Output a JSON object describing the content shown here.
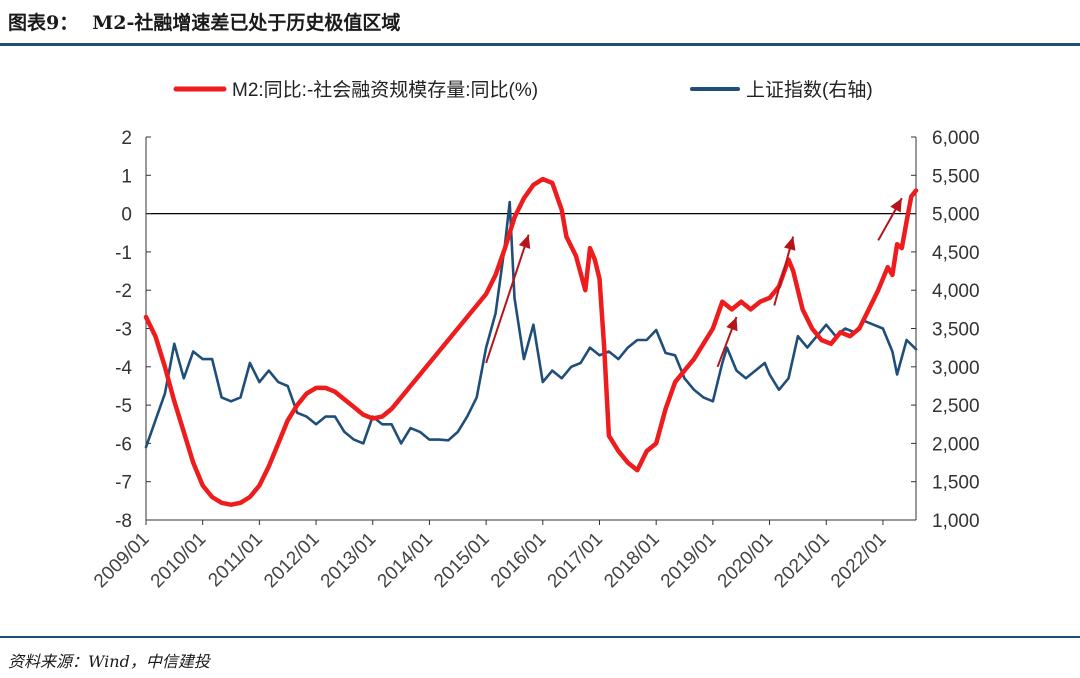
{
  "figure": {
    "label": "图表9：",
    "title": "M2-社融增速差已处于历史极值区域",
    "source": "资料来源：Wind，中信建投"
  },
  "colors": {
    "spread": "#ee1c1c",
    "index": "#1f4e79",
    "arrow": "#b3151b",
    "rule": "#1f4e79"
  },
  "chart_data": {
    "type": "line",
    "legend": {
      "placement": "top"
    },
    "x_tick_labels": [
      "2009/01",
      "2010/01",
      "2011/01",
      "2012/01",
      "2013/01",
      "2014/01",
      "2015/01",
      "2016/01",
      "2017/01",
      "2018/01",
      "2019/01",
      "2020/01",
      "2021/01",
      "2022/01"
    ],
    "x_range": [
      "2009/01",
      "2022/08"
    ],
    "y_left": {
      "range": [
        -8,
        2
      ],
      "ticks": [
        "2",
        "1",
        "0",
        "-1",
        "-2",
        "-3",
        "-4",
        "-5",
        "-6",
        "-7",
        "-8"
      ]
    },
    "y_right": {
      "range": [
        1000,
        6000
      ],
      "ticks": [
        "6,000",
        "5,500",
        "5,000",
        "4,500",
        "4,000",
        "3,500",
        "3,000",
        "2,500",
        "2,000",
        "1,500",
        "1,000"
      ]
    },
    "series": [
      {
        "name": "M2:同比:-社会融资规模存量:同比(%)",
        "axis": "left",
        "points": [
          [
            "2009/01",
            -2.7
          ],
          [
            "2009/03",
            -3.2
          ],
          [
            "2009/05",
            -4.0
          ],
          [
            "2009/07",
            -4.9
          ],
          [
            "2009/09",
            -5.7
          ],
          [
            "2009/11",
            -6.5
          ],
          [
            "2010/01",
            -7.1
          ],
          [
            "2010/03",
            -7.4
          ],
          [
            "2010/05",
            -7.55
          ],
          [
            "2010/07",
            -7.6
          ],
          [
            "2010/09",
            -7.55
          ],
          [
            "2010/11",
            -7.4
          ],
          [
            "2011/01",
            -7.1
          ],
          [
            "2011/03",
            -6.6
          ],
          [
            "2011/05",
            -6.0
          ],
          [
            "2011/07",
            -5.4
          ],
          [
            "2011/09",
            -5.0
          ],
          [
            "2011/11",
            -4.7
          ],
          [
            "2012/01",
            -4.55
          ],
          [
            "2012/03",
            -4.55
          ],
          [
            "2012/05",
            -4.65
          ],
          [
            "2012/07",
            -4.85
          ],
          [
            "2012/09",
            -5.05
          ],
          [
            "2012/11",
            -5.25
          ],
          [
            "2013/01",
            -5.35
          ],
          [
            "2013/03",
            -5.3
          ],
          [
            "2013/05",
            -5.1
          ],
          [
            "2013/07",
            -4.8
          ],
          [
            "2013/09",
            -4.5
          ],
          [
            "2013/11",
            -4.2
          ],
          [
            "2014/01",
            -3.9
          ],
          [
            "2014/03",
            -3.6
          ],
          [
            "2014/05",
            -3.3
          ],
          [
            "2014/07",
            -3.0
          ],
          [
            "2014/09",
            -2.7
          ],
          [
            "2014/11",
            -2.4
          ],
          [
            "2015/01",
            -2.1
          ],
          [
            "2015/03",
            -1.6
          ],
          [
            "2015/05",
            -0.9
          ],
          [
            "2015/07",
            -0.1
          ],
          [
            "2015/09",
            0.4
          ],
          [
            "2015/11",
            0.75
          ],
          [
            "2016/01",
            0.9
          ],
          [
            "2016/03",
            0.8
          ],
          [
            "2016/05",
            0.1
          ],
          [
            "2016/06",
            -0.6
          ],
          [
            "2016/08",
            -1.1
          ],
          [
            "2016/10",
            -2.0
          ],
          [
            "2016/11",
            -0.9
          ],
          [
            "2016/12",
            -1.2
          ],
          [
            "2017/01",
            -1.7
          ],
          [
            "2017/02",
            -3.5
          ],
          [
            "2017/03",
            -5.8
          ],
          [
            "2017/05",
            -6.2
          ],
          [
            "2017/07",
            -6.5
          ],
          [
            "2017/09",
            -6.7
          ],
          [
            "2017/11",
            -6.2
          ],
          [
            "2018/01",
            -6.0
          ],
          [
            "2018/03",
            -5.1
          ],
          [
            "2018/05",
            -4.4
          ],
          [
            "2018/07",
            -4.1
          ],
          [
            "2018/09",
            -3.8
          ],
          [
            "2018/11",
            -3.4
          ],
          [
            "2019/01",
            -3.0
          ],
          [
            "2019/03",
            -2.3
          ],
          [
            "2019/05",
            -2.5
          ],
          [
            "2019/07",
            -2.3
          ],
          [
            "2019/09",
            -2.5
          ],
          [
            "2019/11",
            -2.3
          ],
          [
            "2020/01",
            -2.2
          ],
          [
            "2020/03",
            -1.9
          ],
          [
            "2020/05",
            -1.2
          ],
          [
            "2020/06",
            -1.5
          ],
          [
            "2020/08",
            -2.5
          ],
          [
            "2020/10",
            -3.0
          ],
          [
            "2020/12",
            -3.3
          ],
          [
            "2021/02",
            -3.4
          ],
          [
            "2021/04",
            -3.1
          ],
          [
            "2021/06",
            -3.2
          ],
          [
            "2021/08",
            -3.0
          ],
          [
            "2021/10",
            -2.5
          ],
          [
            "2021/12",
            -2.0
          ],
          [
            "2022/02",
            -1.4
          ],
          [
            "2022/03",
            -1.6
          ],
          [
            "2022/04",
            -0.8
          ],
          [
            "2022/05",
            -0.9
          ],
          [
            "2022/06",
            -0.2
          ],
          [
            "2022/07",
            0.45
          ],
          [
            "2022/08",
            0.6
          ]
        ]
      },
      {
        "name": "上证指数(右轴)",
        "axis": "right",
        "points": [
          [
            "2009/01",
            1950
          ],
          [
            "2009/03",
            2300
          ],
          [
            "2009/05",
            2650
          ],
          [
            "2009/07",
            3300
          ],
          [
            "2009/09",
            2850
          ],
          [
            "2009/11",
            3200
          ],
          [
            "2010/01",
            3100
          ],
          [
            "2010/03",
            3100
          ],
          [
            "2010/05",
            2600
          ],
          [
            "2010/07",
            2550
          ],
          [
            "2010/09",
            2600
          ],
          [
            "2010/11",
            3050
          ],
          [
            "2011/01",
            2800
          ],
          [
            "2011/03",
            2950
          ],
          [
            "2011/05",
            2800
          ],
          [
            "2011/07",
            2750
          ],
          [
            "2011/09",
            2400
          ],
          [
            "2011/11",
            2350
          ],
          [
            "2012/01",
            2250
          ],
          [
            "2012/03",
            2350
          ],
          [
            "2012/05",
            2350
          ],
          [
            "2012/07",
            2150
          ],
          [
            "2012/09",
            2050
          ],
          [
            "2012/11",
            2000
          ],
          [
            "2013/01",
            2350
          ],
          [
            "2013/03",
            2250
          ],
          [
            "2013/05",
            2250
          ],
          [
            "2013/07",
            2000
          ],
          [
            "2013/09",
            2200
          ],
          [
            "2013/11",
            2150
          ],
          [
            "2014/01",
            2050
          ],
          [
            "2014/03",
            2050
          ],
          [
            "2014/05",
            2040
          ],
          [
            "2014/07",
            2150
          ],
          [
            "2014/09",
            2350
          ],
          [
            "2014/11",
            2600
          ],
          [
            "2015/01",
            3250
          ],
          [
            "2015/03",
            3700
          ],
          [
            "2015/05",
            4600
          ],
          [
            "2015/06",
            5150
          ],
          [
            "2015/07",
            3900
          ],
          [
            "2015/09",
            3100
          ],
          [
            "2015/11",
            3550
          ],
          [
            "2016/01",
            2800
          ],
          [
            "2016/03",
            2950
          ],
          [
            "2016/05",
            2850
          ],
          [
            "2016/07",
            3000
          ],
          [
            "2016/09",
            3050
          ],
          [
            "2016/11",
            3250
          ],
          [
            "2017/01",
            3150
          ],
          [
            "2017/03",
            3200
          ],
          [
            "2017/05",
            3100
          ],
          [
            "2017/07",
            3250
          ],
          [
            "2017/09",
            3350
          ],
          [
            "2017/11",
            3350
          ],
          [
            "2018/01",
            3480
          ],
          [
            "2018/03",
            3180
          ],
          [
            "2018/05",
            3150
          ],
          [
            "2018/07",
            2850
          ],
          [
            "2018/09",
            2700
          ],
          [
            "2018/11",
            2600
          ],
          [
            "2019/01",
            2550
          ],
          [
            "2019/03",
            3050
          ],
          [
            "2019/04",
            3250
          ],
          [
            "2019/06",
            2950
          ],
          [
            "2019/08",
            2850
          ],
          [
            "2019/10",
            2950
          ],
          [
            "2019/12",
            3050
          ],
          [
            "2020/01",
            2900
          ],
          [
            "2020/03",
            2700
          ],
          [
            "2020/05",
            2850
          ],
          [
            "2020/07",
            3400
          ],
          [
            "2020/09",
            3250
          ],
          [
            "2020/11",
            3400
          ],
          [
            "2021/01",
            3550
          ],
          [
            "2021/03",
            3400
          ],
          [
            "2021/05",
            3500
          ],
          [
            "2021/07",
            3450
          ],
          [
            "2021/09",
            3600
          ],
          [
            "2021/11",
            3550
          ],
          [
            "2022/01",
            3500
          ],
          [
            "2022/03",
            3200
          ],
          [
            "2022/04",
            2900
          ],
          [
            "2022/06",
            3350
          ],
          [
            "2022/08",
            3230
          ]
        ]
      }
    ],
    "annotations": {
      "arrows": [
        {
          "from": [
            "2015/01",
            -3.9
          ],
          "to": [
            "2015/10",
            -0.55
          ]
        },
        {
          "from": [
            "2019/02",
            -4.0
          ],
          "to": [
            "2019/06",
            -2.7
          ]
        },
        {
          "from": [
            "2020/02",
            -2.4
          ],
          "to": [
            "2020/06",
            -0.6
          ]
        },
        {
          "from": [
            "2021/12",
            -0.7
          ],
          "to": [
            "2022/05",
            0.4
          ]
        }
      ]
    }
  }
}
